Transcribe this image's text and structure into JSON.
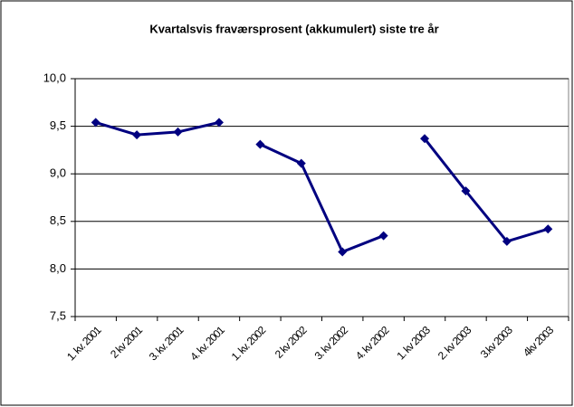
{
  "chart_data": {
    "type": "line",
    "title": "Kvartalsvis fraværsprosent (akkumulert) siste tre år",
    "categories": [
      "1. kv. 2001",
      "2 kv 2001",
      "3. kv. 2001",
      "4. kv. 2001",
      "1. kv. 2002",
      "2 kv 2002",
      "3. kv 2002",
      "4. kv 2002",
      "1. kv 2003",
      "2. kv 2003",
      "3.kv 2003",
      "4kv 2003"
    ],
    "series": [
      {
        "color": "#000080",
        "values": [
          9.54,
          9.41,
          9.44,
          9.54,
          null,
          null,
          null,
          null,
          null,
          null,
          null,
          null
        ]
      },
      {
        "color": "#000080",
        "values": [
          null,
          null,
          null,
          null,
          9.31,
          9.11,
          8.18,
          8.35,
          null,
          null,
          null,
          null
        ]
      },
      {
        "color": "#000080",
        "values": [
          null,
          null,
          null,
          null,
          null,
          null,
          null,
          null,
          9.37,
          8.82,
          8.29,
          8.42
        ]
      }
    ],
    "ylim": [
      7.5,
      10.0
    ],
    "yticks": [
      {
        "value": 7.5,
        "label": "7,5"
      },
      {
        "value": 8.0,
        "label": "8,0"
      },
      {
        "value": 8.5,
        "label": "8,5"
      },
      {
        "value": 9.0,
        "label": "9,0"
      },
      {
        "value": 9.5,
        "label": "9,5"
      },
      {
        "value": 10.0,
        "label": "10,0"
      }
    ],
    "grid": true
  }
}
